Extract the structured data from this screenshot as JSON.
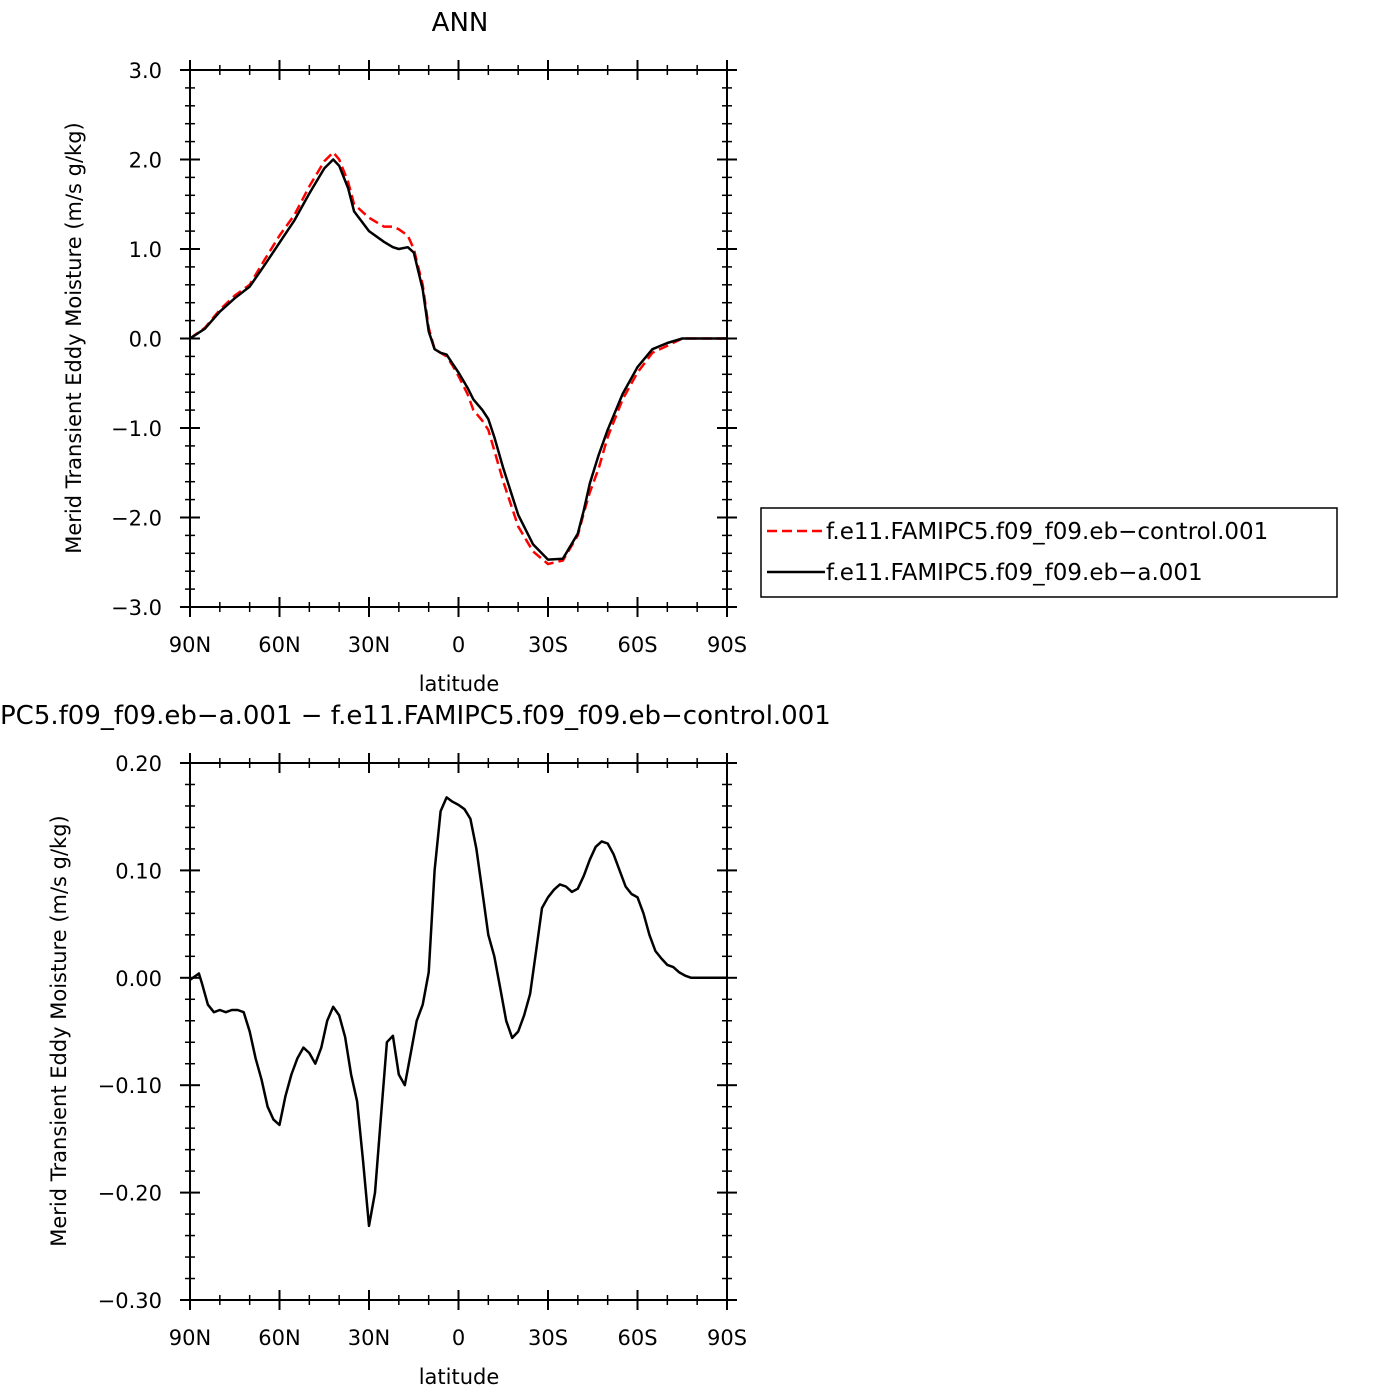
{
  "chart_data": [
    {
      "type": "line",
      "title": "ANN",
      "xlabel": "latitude",
      "ylabel": "Merid Transient Eddy Moisture (m/s g/kg)",
      "xlim": [
        90,
        -90
      ],
      "ylim": [
        -3.0,
        3.0
      ],
      "xticks": [
        90,
        60,
        30,
        0,
        -30,
        -60,
        -90
      ],
      "xtick_labels": [
        "90N",
        "60N",
        "30N",
        "0",
        "30S",
        "60S",
        "90S"
      ],
      "yticks": [
        3.0,
        2.0,
        1.0,
        0.0,
        -1.0,
        -2.0,
        -3.0
      ],
      "ytick_labels": [
        "3.0",
        "2.0",
        "1.0",
        "0.0",
        "−1.0",
        "−2.0",
        "−3.0"
      ],
      "grid": false,
      "legend_position": "right",
      "series": [
        {
          "name": "f.e11.FAMIPC5.f09_f09.eb−control.001",
          "color": "#ff0000",
          "dash": "dashed",
          "x": [
            90,
            85,
            80,
            75,
            70,
            65,
            60,
            55,
            50,
            45,
            42,
            40,
            37,
            35,
            30,
            25,
            22,
            20,
            17,
            15,
            12,
            10,
            8,
            6,
            4,
            2,
            0,
            -3,
            -5,
            -8,
            -10,
            -12,
            -15,
            -20,
            -25,
            -30,
            -35,
            -40,
            -42,
            -44,
            -47,
            -50,
            -55,
            -60,
            -65,
            -70,
            -75,
            -80,
            -85,
            -90
          ],
          "y": [
            0.0,
            0.12,
            0.32,
            0.48,
            0.6,
            0.88,
            1.15,
            1.38,
            1.7,
            1.98,
            2.08,
            2.0,
            1.75,
            1.5,
            1.35,
            1.25,
            1.25,
            1.22,
            1.15,
            1.0,
            0.6,
            0.12,
            -0.12,
            -0.16,
            -0.2,
            -0.3,
            -0.42,
            -0.62,
            -0.8,
            -0.92,
            -1.02,
            -1.25,
            -1.6,
            -2.1,
            -2.38,
            -2.52,
            -2.48,
            -2.2,
            -1.95,
            -1.72,
            -1.45,
            -1.1,
            -0.68,
            -0.38,
            -0.16,
            -0.08,
            0.0,
            0.0,
            0.0,
            0.0
          ]
        },
        {
          "name": "f.e11.FAMIPC5.f09_f09.eb−a.001",
          "color": "#000000",
          "dash": "solid",
          "x": [
            90,
            85,
            80,
            75,
            70,
            65,
            60,
            55,
            50,
            45,
            42,
            40,
            37,
            35,
            30,
            25,
            22,
            20,
            17,
            15,
            12,
            10,
            8,
            6,
            4,
            2,
            0,
            -3,
            -5,
            -8,
            -10,
            -12,
            -15,
            -20,
            -25,
            -30,
            -35,
            -40,
            -42,
            -44,
            -47,
            -50,
            -55,
            -60,
            -65,
            -70,
            -75,
            -80,
            -85,
            -90
          ],
          "y": [
            0.0,
            0.11,
            0.3,
            0.45,
            0.58,
            0.82,
            1.07,
            1.32,
            1.62,
            1.9,
            2.0,
            1.93,
            1.68,
            1.42,
            1.2,
            1.08,
            1.02,
            1.0,
            1.02,
            0.96,
            0.55,
            0.08,
            -0.12,
            -0.16,
            -0.18,
            -0.28,
            -0.38,
            -0.55,
            -0.68,
            -0.8,
            -0.9,
            -1.1,
            -1.45,
            -1.97,
            -2.3,
            -2.47,
            -2.46,
            -2.18,
            -1.92,
            -1.62,
            -1.3,
            -1.02,
            -0.62,
            -0.32,
            -0.12,
            -0.05,
            0.0,
            0.0,
            0.0,
            0.0
          ]
        }
      ]
    },
    {
      "type": "line",
      "title": "PC5.f09_f09.eb−a.001 − f.e11.FAMIPC5.f09_f09.eb−control.001",
      "xlabel": "latitude",
      "ylabel": "Merid Transient Eddy Moisture (m/s g/kg)",
      "xlim": [
        90,
        -90
      ],
      "ylim": [
        -0.3,
        0.2
      ],
      "xticks": [
        90,
        60,
        30,
        0,
        -30,
        -60,
        -90
      ],
      "xtick_labels": [
        "90N",
        "60N",
        "30N",
        "0",
        "30S",
        "60S",
        "90S"
      ],
      "yticks": [
        0.2,
        0.1,
        0.0,
        -0.1,
        -0.2,
        -0.3
      ],
      "ytick_labels": [
        "0.20",
        "0.10",
        "0.00",
        "−0.10",
        "−0.20",
        "−0.30"
      ],
      "grid": false,
      "series": [
        {
          "color": "#000000",
          "dash": "solid",
          "x": [
            90,
            87,
            86,
            84,
            82,
            80,
            78,
            76,
            74,
            72,
            70,
            68,
            66,
            64,
            62,
            60,
            58,
            56,
            54,
            52,
            50,
            48,
            46,
            44,
            42,
            40,
            38,
            36,
            34,
            32,
            30,
            28,
            26,
            24,
            22,
            20,
            18,
            16,
            14,
            12,
            10,
            8,
            6,
            4,
            2,
            0,
            -2,
            -4,
            -6,
            -8,
            -10,
            -12,
            -14,
            -16,
            -18,
            -20,
            -22,
            -24,
            -26,
            -28,
            -30,
            -32,
            -34,
            -36,
            -38,
            -40,
            -42,
            -44,
            -46,
            -48,
            -50,
            -52,
            -54,
            -56,
            -58,
            -60,
            -62,
            -64,
            -66,
            -68,
            -70,
            -72,
            -74,
            -76,
            -78,
            -80,
            -82,
            -84,
            -86,
            -88,
            -90
          ],
          "y": [
            -0.002,
            0.004,
            -0.005,
            -0.025,
            -0.032,
            -0.03,
            -0.032,
            -0.03,
            -0.03,
            -0.032,
            -0.05,
            -0.075,
            -0.095,
            -0.12,
            -0.132,
            -0.137,
            -0.11,
            -0.09,
            -0.075,
            -0.065,
            -0.07,
            -0.08,
            -0.065,
            -0.04,
            -0.027,
            -0.035,
            -0.055,
            -0.09,
            -0.115,
            -0.17,
            -0.231,
            -0.2,
            -0.13,
            -0.06,
            -0.054,
            -0.09,
            -0.1,
            -0.07,
            -0.04,
            -0.025,
            0.005,
            0.1,
            0.155,
            0.168,
            0.164,
            0.161,
            0.157,
            0.148,
            0.12,
            0.08,
            0.04,
            0.02,
            -0.01,
            -0.04,
            -0.056,
            -0.05,
            -0.035,
            -0.015,
            0.025,
            0.065,
            0.075,
            0.082,
            0.087,
            0.085,
            0.08,
            0.083,
            0.095,
            0.11,
            0.122,
            0.127,
            0.125,
            0.115,
            0.1,
            0.085,
            0.078,
            0.075,
            0.06,
            0.04,
            0.025,
            0.018,
            0.012,
            0.01,
            0.005,
            0.002,
            0.0,
            0.0,
            0.0,
            0.0,
            0.0,
            0.0,
            0.0
          ]
        }
      ]
    }
  ]
}
